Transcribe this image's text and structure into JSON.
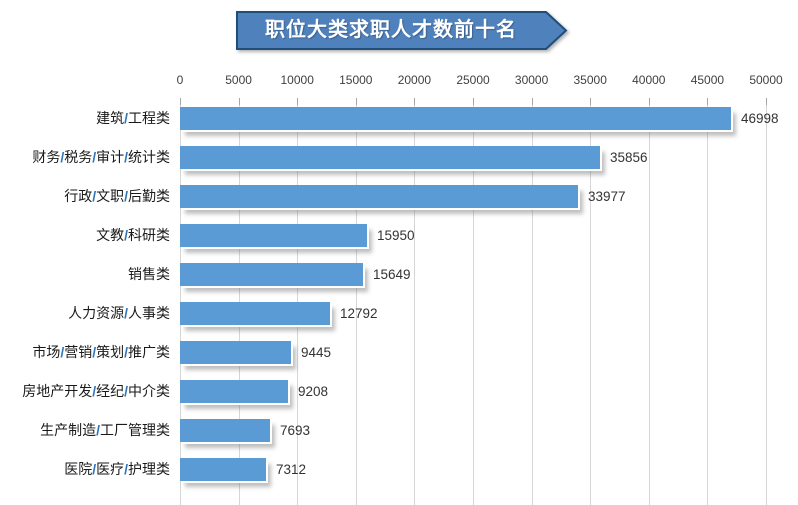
{
  "chart_data": {
    "type": "bar",
    "orientation": "horizontal",
    "title": "职位大类求职人才数前十名",
    "categories": [
      "建筑/工程类",
      "财务/税务/审计/统计类",
      "行政/文职/后勤类",
      "文教/科研类",
      "销售类",
      "人力资源/人事类",
      "市场/营销/策划/推广类",
      "房地产开发/经纪/中介类",
      "生产制造/工厂管理类",
      "医院/医疗/护理类"
    ],
    "values": [
      46998,
      35856,
      33977,
      15950,
      15649,
      12792,
      9445,
      9208,
      7693,
      7312
    ],
    "xlabel": "",
    "ylabel": "",
    "xlim": [
      0,
      50000
    ],
    "x_ticks": [
      0,
      5000,
      10000,
      15000,
      20000,
      25000,
      30000,
      35000,
      40000,
      45000,
      50000
    ],
    "tick_label_position": "top",
    "grid": true,
    "legend": false,
    "value_labels": true
  },
  "colors": {
    "bar_fill": "#5B9BD5",
    "banner_fill": "#4F81BD",
    "banner_border": "#1F4E79",
    "gridline": "#D6D6D6",
    "axis_tick": "#A6A6A6",
    "axis_label": "#404040",
    "value_label": "#333333",
    "category_label": "#1A1A1A",
    "category_slash": "#2E75B6"
  }
}
